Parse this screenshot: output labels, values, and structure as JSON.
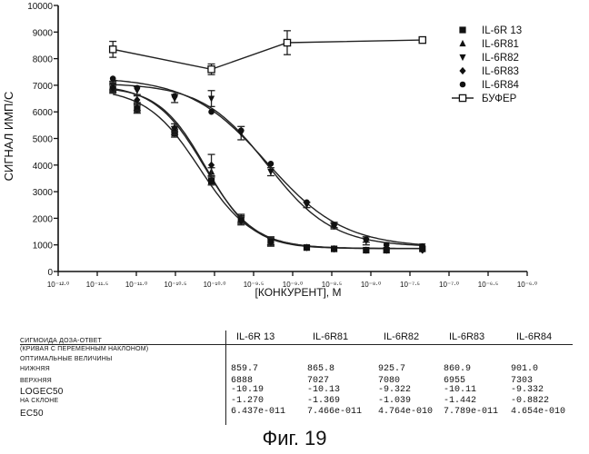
{
  "chart_data": {
    "type": "scatter",
    "ylabel": "СИГНАЛ ИМП/С",
    "xlabel": "[КОНКУРЕНТ], М",
    "xscale": "log",
    "xlim_exp": [
      -12.0,
      -6.0
    ],
    "ylim": [
      0,
      10000
    ],
    "x_ticks": [
      "10⁻¹²·⁰",
      "10⁻¹¹·⁵",
      "10⁻¹¹·⁰",
      "10⁻¹⁰·⁵",
      "10⁻¹⁰·⁰",
      "10⁻⁹·⁵",
      "10⁻⁹·⁰",
      "10⁻⁸·⁵",
      "10⁻⁸·⁰",
      "10⁻⁷·⁵",
      "10⁻⁷·⁰",
      "10⁻⁶·⁵",
      "10⁻⁶·⁰"
    ],
    "x_tick_exps": [
      -12.0,
      -11.5,
      -11.0,
      -10.5,
      -10.0,
      -9.5,
      -9.0,
      -8.5,
      -8.0,
      -7.5,
      -7.0,
      -6.5,
      -6.0
    ],
    "y_ticks": [
      0,
      1000,
      2000,
      3000,
      4000,
      5000,
      6000,
      7000,
      8000,
      9000,
      10000
    ],
    "legend_position": "top-right",
    "series": [
      {
        "name": "IL-6R 13",
        "marker": "square",
        "x": [
          -11.3,
          -10.99,
          -10.51,
          -10.04,
          -9.66,
          -9.28,
          -8.82,
          -8.47,
          -8.06,
          -7.8,
          -7.34
        ],
        "y": [
          6850,
          6100,
          5200,
          3400,
          1950,
          1150,
          900,
          850,
          800,
          800,
          850
        ],
        "err": [
          150,
          150,
          150,
          150,
          150,
          150,
          0,
          0,
          0,
          0,
          0
        ],
        "fit": {
          "bottom": 859.7,
          "top": 6888,
          "logec50": -10.19,
          "hill": -1.27
        }
      },
      {
        "name": "IL-6R81",
        "marker": "triangle-up",
        "x": [
          -11.3,
          -10.99,
          -10.51,
          -10.04,
          -9.66,
          -9.28,
          -8.82,
          -8.47,
          -8.06,
          -7.8,
          -7.34
        ],
        "y": [
          6950,
          6200,
          5300,
          3750,
          2000,
          1150,
          900,
          850,
          800,
          800,
          850
        ],
        "err": [
          150,
          150,
          150,
          150,
          150,
          150,
          0,
          0,
          0,
          0,
          0
        ],
        "fit": {
          "bottom": 865.8,
          "top": 7027,
          "logec50": -10.13,
          "hill": -1.369
        }
      },
      {
        "name": "IL-6R82",
        "marker": "triangle-down",
        "x": [
          -11.3,
          -10.99,
          -10.51,
          -10.04,
          -9.66,
          -9.28,
          -8.82,
          -8.47,
          -8.06,
          -7.8,
          -7.34
        ],
        "y": [
          7000,
          6800,
          6500,
          6500,
          5200,
          3750,
          2500,
          1700,
          1150,
          1000,
          950
        ],
        "err": [
          150,
          150,
          150,
          300,
          250,
          150,
          100,
          100,
          150,
          0,
          0
        ],
        "fit": {
          "bottom": 925.7,
          "top": 7080,
          "logec50": -9.322,
          "hill": -1.039
        }
      },
      {
        "name": "IL-6R83",
        "marker": "diamond",
        "x": [
          -11.3,
          -10.99,
          -10.51,
          -10.04,
          -9.66,
          -9.28,
          -8.82,
          -8.47,
          -8.06,
          -7.8,
          -7.34
        ],
        "y": [
          6900,
          6450,
          5400,
          4000,
          1900,
          1100,
          900,
          850,
          800,
          800,
          800
        ],
        "err": [
          150,
          150,
          150,
          400,
          150,
          150,
          0,
          0,
          0,
          0,
          0
        ],
        "fit": {
          "bottom": 860.9,
          "top": 6955,
          "logec50": -10.11,
          "hill": -1.442
        }
      },
      {
        "name": "IL-6R84",
        "marker": "circle",
        "x": [
          -11.3,
          -10.99,
          -10.51,
          -10.04,
          -9.66,
          -9.28,
          -8.82,
          -8.47,
          -8.06,
          -7.8,
          -7.34
        ],
        "y": [
          7250,
          6900,
          6600,
          6000,
          5300,
          4050,
          2600,
          1750,
          1200,
          1000,
          950
        ],
        "err": [
          0,
          0,
          0,
          0,
          0,
          0,
          0,
          100,
          100,
          0,
          0
        ],
        "fit": {
          "bottom": 901.0,
          "top": 7303,
          "logec50": -9.332,
          "hill": -0.8822
        }
      },
      {
        "name": "БУФЕР",
        "marker": "open-square",
        "x": [
          -11.3,
          -10.04,
          -9.07,
          -7.34
        ],
        "y": [
          8350,
          7600,
          8600,
          8700
        ],
        "err": [
          300,
          200,
          450,
          0
        ]
      }
    ]
  },
  "table": {
    "headers": [
      "IL-6R 13",
      "IL-6R81",
      "IL-6R82",
      "IL-6R83",
      "IL-6R84"
    ],
    "rows": [
      {
        "label": "СИГМОИДА ДОЗА-ОТВЕТ",
        "values": []
      },
      {
        "label": "(КРИВАЯ С ПЕРЕМЕННЫМ НАКЛОНОМ)",
        "values": []
      },
      {
        "label": "ОПТИМАЛЬНЫЕ ВЕЛИЧИНЫ",
        "values": []
      },
      {
        "label": "НИЖНЯЯ",
        "values": [
          "859.7",
          "865.8",
          "925.7",
          "860.9",
          "901.0"
        ]
      },
      {
        "label": "ВЕРХНЯЯ",
        "values": [
          "6888",
          "7027",
          "7080",
          "6955",
          "7303"
        ]
      },
      {
        "label": "LOGEC50",
        "values": [
          "-10.19",
          "-10.13",
          "-9.322",
          "-10.11",
          "-9.332"
        ]
      },
      {
        "label": "НА СКЛОНЕ",
        "values": [
          "-1.270",
          "-1.369",
          "-1.039",
          "-1.442",
          "-0.8822"
        ]
      },
      {
        "label": "EC50",
        "values": [
          "6.437e-011",
          "7.466e-011",
          "4.764e-010",
          "7.789e-011",
          "4.654e-010"
        ]
      }
    ]
  },
  "caption": "Фиг. 19"
}
